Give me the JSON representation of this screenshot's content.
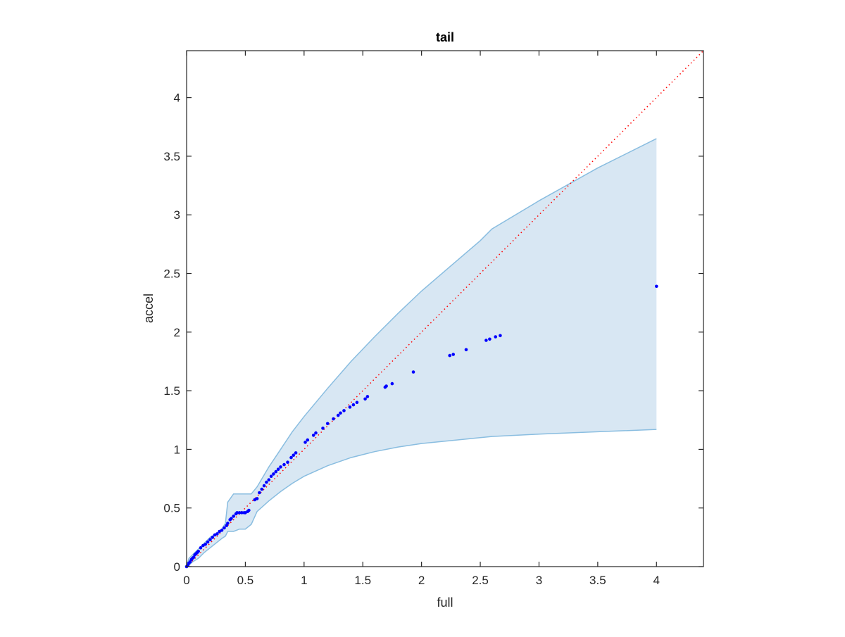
{
  "chart_data": {
    "type": "scatter",
    "title": "tail",
    "xlabel": "full",
    "ylabel": "accel",
    "xlim": [
      0,
      4.4
    ],
    "ylim": [
      0,
      4.4
    ],
    "xticks": [
      "0",
      "0.5",
      "1",
      "1.5",
      "2",
      "2.5",
      "3",
      "3.5",
      "4"
    ],
    "yticks": [
      "0",
      "0.5",
      "1",
      "1.5",
      "2",
      "2.5",
      "3",
      "3.5",
      "4"
    ],
    "grid": false,
    "legend": "none",
    "colors": {
      "points": "#0000ff",
      "reference_line": "#ff0000",
      "band_fill": "#d8e7f3",
      "band_edge": "#89bde0",
      "axes": "#262626"
    },
    "reference_line": {
      "style": "dotted",
      "x": [
        0,
        4.4
      ],
      "y": [
        0,
        4.4
      ]
    },
    "envelope": {
      "x": [
        0,
        0.02,
        0.05,
        0.1,
        0.15,
        0.2,
        0.25,
        0.3,
        0.33,
        0.35,
        0.4,
        0.45,
        0.5,
        0.55,
        0.6,
        0.7,
        0.8,
        0.9,
        1.0,
        1.2,
        1.4,
        1.6,
        1.8,
        2.0,
        2.5,
        2.6,
        3.0,
        3.5,
        4.0
      ],
      "upper": [
        0,
        0.07,
        0.1,
        0.15,
        0.2,
        0.25,
        0.28,
        0.32,
        0.37,
        0.55,
        0.62,
        0.62,
        0.62,
        0.62,
        0.68,
        0.85,
        1.0,
        1.15,
        1.28,
        1.52,
        1.75,
        1.96,
        2.16,
        2.35,
        2.78,
        2.88,
        3.12,
        3.4,
        3.65
      ],
      "lower": [
        0,
        0.01,
        0.04,
        0.07,
        0.12,
        0.16,
        0.2,
        0.24,
        0.26,
        0.3,
        0.3,
        0.32,
        0.32,
        0.36,
        0.47,
        0.56,
        0.64,
        0.71,
        0.77,
        0.86,
        0.93,
        0.98,
        1.02,
        1.05,
        1.1,
        1.11,
        1.13,
        1.15,
        1.17
      ]
    },
    "points": {
      "x": [
        0,
        0.01,
        0.02,
        0.03,
        0.04,
        0.05,
        0.06,
        0.07,
        0.08,
        0.09,
        0.1,
        0.12,
        0.14,
        0.16,
        0.18,
        0.2,
        0.22,
        0.24,
        0.26,
        0.28,
        0.3,
        0.32,
        0.34,
        0.35,
        0.37,
        0.38,
        0.4,
        0.42,
        0.43,
        0.45,
        0.47,
        0.49,
        0.5,
        0.52,
        0.53,
        0.58,
        0.6,
        0.62,
        0.64,
        0.66,
        0.68,
        0.7,
        0.72,
        0.74,
        0.76,
        0.78,
        0.8,
        0.83,
        0.86,
        0.89,
        0.91,
        0.93,
        1.01,
        1.03,
        1.08,
        1.1,
        1.16,
        1.2,
        1.25,
        1.29,
        1.31,
        1.34,
        1.39,
        1.42,
        1.45,
        1.52,
        1.54,
        1.69,
        1.7,
        1.75,
        1.93,
        2.24,
        2.27,
        2.38,
        2.55,
        2.58,
        2.63,
        2.67,
        4.0
      ],
      "y": [
        0,
        0.01,
        0.03,
        0.04,
        0.06,
        0.07,
        0.08,
        0.1,
        0.11,
        0.12,
        0.13,
        0.16,
        0.18,
        0.19,
        0.21,
        0.23,
        0.25,
        0.27,
        0.28,
        0.3,
        0.31,
        0.33,
        0.35,
        0.37,
        0.4,
        0.41,
        0.43,
        0.45,
        0.46,
        0.46,
        0.46,
        0.46,
        0.46,
        0.47,
        0.48,
        0.57,
        0.58,
        0.63,
        0.66,
        0.69,
        0.72,
        0.74,
        0.77,
        0.79,
        0.81,
        0.83,
        0.85,
        0.87,
        0.89,
        0.93,
        0.95,
        0.97,
        1.06,
        1.08,
        1.12,
        1.14,
        1.18,
        1.22,
        1.26,
        1.29,
        1.31,
        1.33,
        1.36,
        1.38,
        1.4,
        1.43,
        1.45,
        1.53,
        1.54,
        1.56,
        1.66,
        1.8,
        1.81,
        1.85,
        1.93,
        1.94,
        1.96,
        1.97,
        2.39
      ]
    }
  }
}
